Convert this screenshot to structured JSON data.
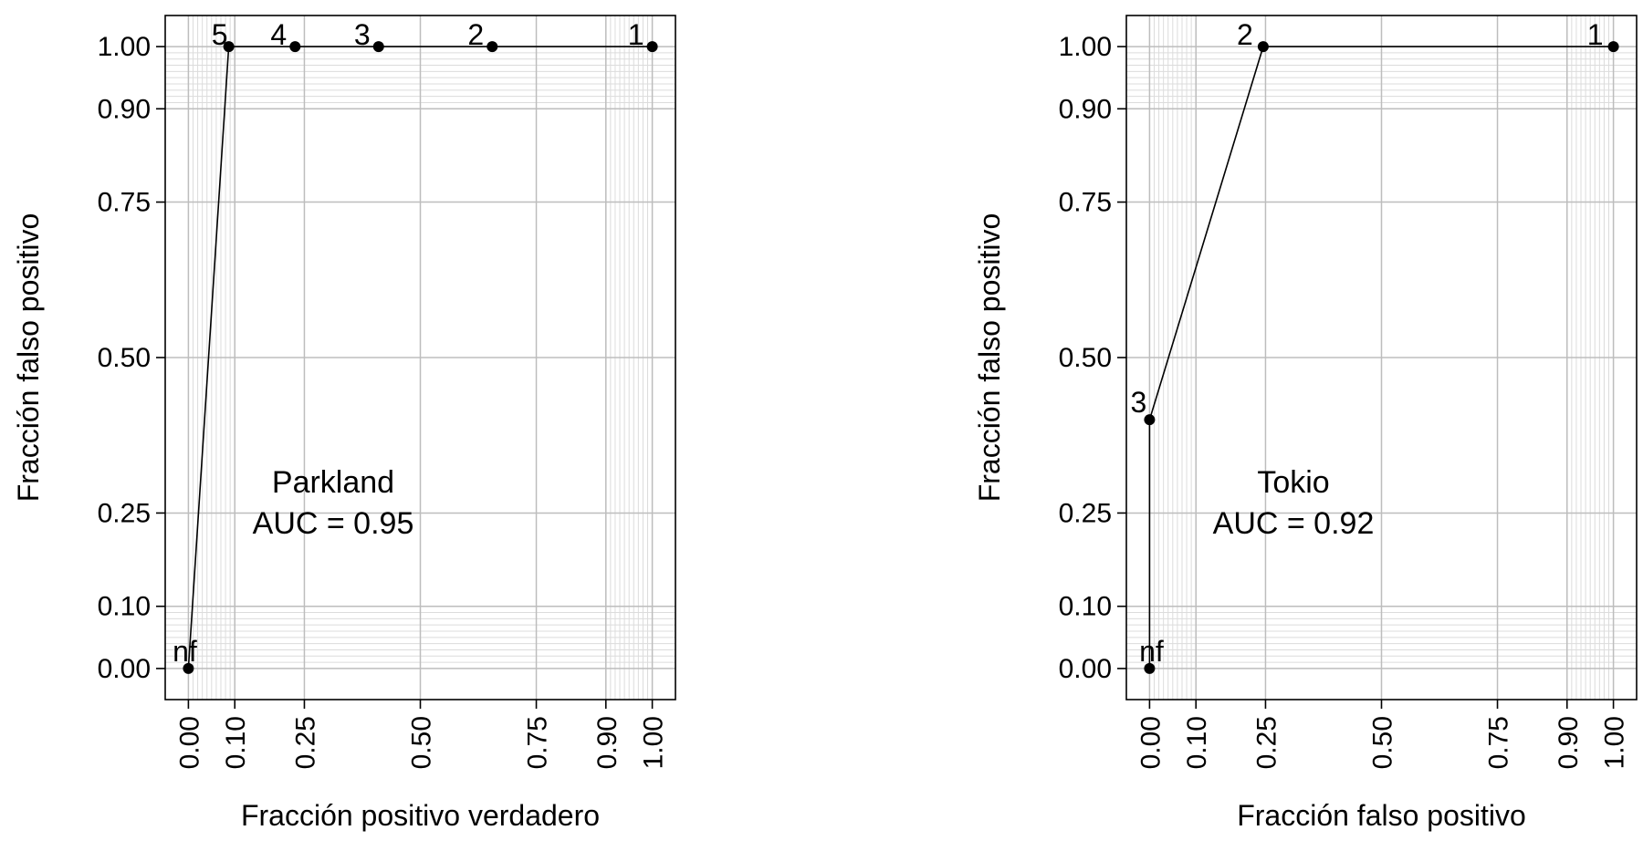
{
  "chart_data": [
    {
      "type": "line",
      "xlabel": "Fracción positivo verdadero",
      "ylabel": "Fracción falso positivo",
      "xlim": [
        -0.05,
        1.05
      ],
      "ylim": [
        -0.05,
        1.05
      ],
      "ticks": [
        0.0,
        0.1,
        0.25,
        0.5,
        0.75,
        0.9,
        1.0
      ],
      "tick_labels": [
        "0.00",
        "0.10",
        "0.25",
        "0.50",
        "0.75",
        "0.90",
        "1.00"
      ],
      "minor_grid": true,
      "annotation": {
        "name": "Parkland",
        "auc": "AUC = 0.95"
      },
      "points": [
        {
          "label": "nf",
          "x": 0.0,
          "y": 0.0
        },
        {
          "label": "5",
          "x": 0.087,
          "y": 1.0
        },
        {
          "label": "4",
          "x": 0.23,
          "y": 1.0
        },
        {
          "label": "3",
          "x": 0.41,
          "y": 1.0
        },
        {
          "label": "2",
          "x": 0.655,
          "y": 1.0
        },
        {
          "label": "1",
          "x": 1.0,
          "y": 1.0
        }
      ]
    },
    {
      "type": "line",
      "xlabel": "Fracción falso positivo",
      "ylabel": "Fracción falso positivo",
      "xlim": [
        -0.05,
        1.05
      ],
      "ylim": [
        -0.05,
        1.05
      ],
      "ticks": [
        0.0,
        0.1,
        0.25,
        0.5,
        0.75,
        0.9,
        1.0
      ],
      "tick_labels": [
        "0.00",
        "0.10",
        "0.25",
        "0.50",
        "0.75",
        "0.90",
        "1.00"
      ],
      "minor_grid": true,
      "annotation": {
        "name": "Tokio",
        "auc": "AUC = 0.92"
      },
      "points": [
        {
          "label": "nf",
          "x": 0.0,
          "y": 0.0
        },
        {
          "label": "3",
          "x": 0.0,
          "y": 0.4
        },
        {
          "label": "2",
          "x": 0.245,
          "y": 1.0
        },
        {
          "label": "1",
          "x": 1.0,
          "y": 1.0
        }
      ]
    }
  ]
}
